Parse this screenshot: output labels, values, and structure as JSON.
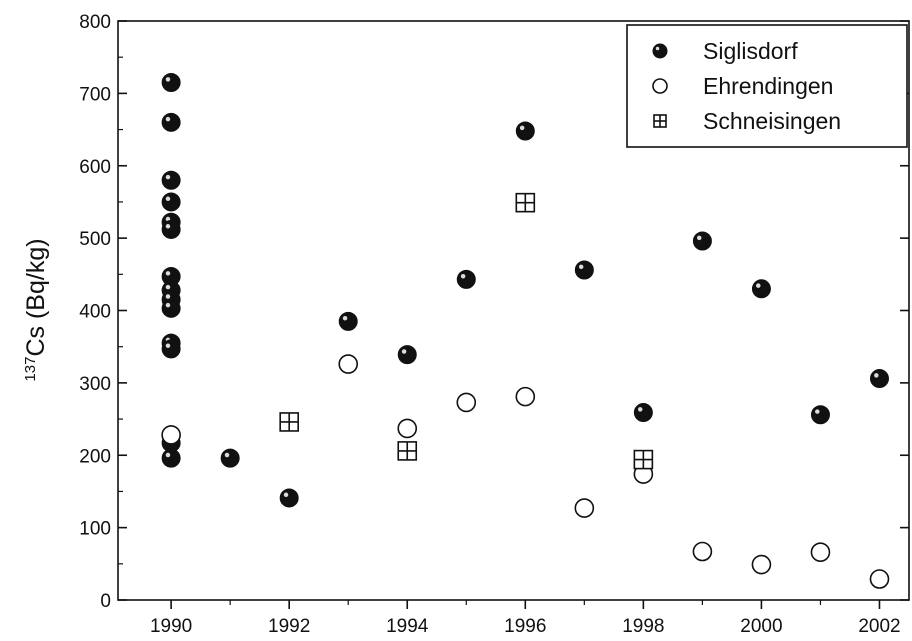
{
  "chart_data": {
    "type": "scatter",
    "title": "",
    "xlabel": "",
    "ylabel": {
      "superscript": "137",
      "text": "Cs (Bq/kg)"
    },
    "xlim": [
      1989.1,
      2002.5
    ],
    "ylim": [
      0,
      800
    ],
    "x_ticks": [
      1990,
      1992,
      1994,
      1996,
      1998,
      2000,
      2002
    ],
    "y_ticks": [
      0,
      100,
      200,
      300,
      400,
      500,
      600,
      700,
      800
    ],
    "grid": false,
    "legend": "top-right",
    "series": [
      {
        "name": "Siglisdorf",
        "marker": "filled-circle",
        "color": "#111111",
        "points": [
          [
            1990,
            715
          ],
          [
            1990,
            660
          ],
          [
            1990,
            580
          ],
          [
            1990,
            550
          ],
          [
            1990,
            522
          ],
          [
            1990,
            512
          ],
          [
            1990,
            447
          ],
          [
            1990,
            428
          ],
          [
            1990,
            415
          ],
          [
            1990,
            403
          ],
          [
            1990,
            355
          ],
          [
            1990,
            347
          ],
          [
            1990,
            217
          ],
          [
            1990,
            196
          ],
          [
            1991,
            196
          ],
          [
            1992,
            141
          ],
          [
            1993,
            385
          ],
          [
            1994,
            339
          ],
          [
            1995,
            443
          ],
          [
            1996,
            648
          ],
          [
            1997,
            456
          ],
          [
            1998,
            259
          ],
          [
            1999,
            496
          ],
          [
            2000,
            430
          ],
          [
            2001,
            256
          ],
          [
            2002,
            306
          ]
        ]
      },
      {
        "name": "Ehrendingen",
        "marker": "open-circle",
        "color": "#111111",
        "points": [
          [
            1990,
            228
          ],
          [
            1993,
            326
          ],
          [
            1994,
            237
          ],
          [
            1995,
            273
          ],
          [
            1996,
            281
          ],
          [
            1997,
            127
          ],
          [
            1998,
            174
          ],
          [
            1999,
            67
          ],
          [
            2000,
            49
          ],
          [
            2001,
            66
          ],
          [
            2002,
            29
          ]
        ]
      },
      {
        "name": "Schneisingen",
        "marker": "crossed-square",
        "color": "#111111",
        "points": [
          [
            1992,
            246
          ],
          [
            1994,
            206
          ],
          [
            1996,
            549
          ],
          [
            1998,
            194
          ]
        ]
      }
    ]
  }
}
